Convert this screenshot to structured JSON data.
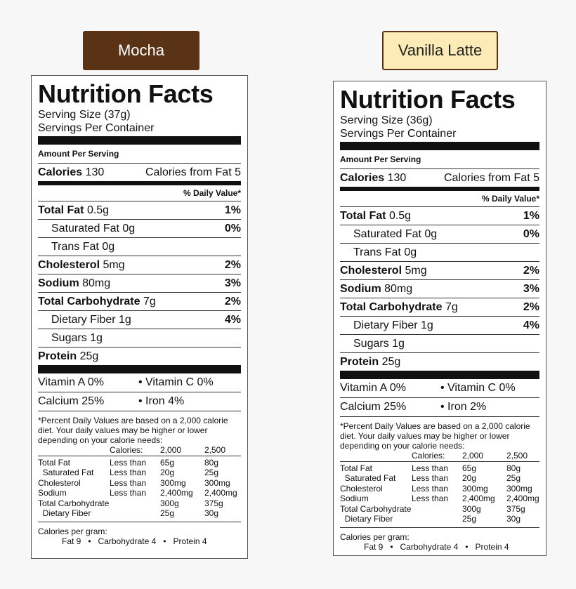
{
  "tabs": [
    {
      "label": "Mocha",
      "bg": "#5a3317",
      "fg": "#ffffff"
    },
    {
      "label": "Vanilla Latte",
      "bg": "#fcebb6",
      "fg": "#222222"
    }
  ],
  "labels": [
    {
      "title": "Nutrition Facts",
      "serving_size": "Serving Size (37g)",
      "servings_per_container": "Servings Per Container",
      "amount_per_serving": "Amount Per Serving",
      "calories_label": "Calories",
      "calories_value": "130",
      "calories_from_fat": "Calories from Fat 5",
      "daily_value_header": "% Daily Value*",
      "nutrients": {
        "total_fat": {
          "label": "Total Fat",
          "amount": "0.5g",
          "dv": "1%"
        },
        "saturated_fat": {
          "label": "Saturated Fat",
          "amount": "0g",
          "dv": "0%"
        },
        "trans_fat": {
          "label": "Trans Fat",
          "amount": "0g"
        },
        "cholesterol": {
          "label": "Cholesterol",
          "amount": "5mg",
          "dv": "2%"
        },
        "sodium": {
          "label": "Sodium",
          "amount": "80mg",
          "dv": "3%"
        },
        "total_carb": {
          "label": "Total Carbohydrate",
          "amount": "7g",
          "dv": "2%"
        },
        "fiber": {
          "label": "Dietary Fiber",
          "amount": "1g",
          "dv": "4%"
        },
        "sugars": {
          "label": "Sugars",
          "amount": "1g"
        },
        "protein": {
          "label": "Protein",
          "amount": "25g"
        }
      },
      "vitamin_a": "Vitamin A 0%",
      "vitamin_c": "• Vitamin C 0%",
      "calcium": "Calcium 25%",
      "iron": "• Iron 4%",
      "footnote": "*Percent Daily Values are based on a 2,000 calorie diet. Your daily values may be higher or lower depending on your calorie needs:",
      "calories_header": "Calories:",
      "cal_2000": "2,000",
      "cal_2500": "2,500",
      "table": [
        [
          "Total Fat",
          "Less than",
          "65g",
          "80g"
        ],
        [
          "  Saturated Fat",
          "Less than",
          "20g",
          "25g"
        ],
        [
          "Cholesterol",
          "Less than",
          "300mg",
          "300mg"
        ],
        [
          "Sodium",
          "Less than",
          "2,400mg",
          "2,400mg"
        ],
        [
          "Total Carbohydrate",
          "",
          "300g",
          "375g"
        ],
        [
          "  Dietary Fiber",
          "",
          "25g",
          "30g"
        ]
      ],
      "calories_per_gram": "Calories per gram:",
      "cpg_values": "Fat 9   •   Carbohydrate 4   •   Protein 4"
    },
    {
      "title": "Nutrition Facts",
      "serving_size": "Serving Size (36g)",
      "servings_per_container": "Servings Per Container",
      "amount_per_serving": "Amount Per Serving",
      "calories_label": "Calories",
      "calories_value": "130",
      "calories_from_fat": "Calories from Fat 5",
      "daily_value_header": "% Daily Value*",
      "nutrients": {
        "total_fat": {
          "label": "Total Fat",
          "amount": "0.5g",
          "dv": "1%"
        },
        "saturated_fat": {
          "label": "Saturated Fat",
          "amount": "0g",
          "dv": "0%"
        },
        "trans_fat": {
          "label": "Trans Fat",
          "amount": "0g"
        },
        "cholesterol": {
          "label": "Cholesterol",
          "amount": "5mg",
          "dv": "2%"
        },
        "sodium": {
          "label": "Sodium",
          "amount": "80mg",
          "dv": "3%"
        },
        "total_carb": {
          "label": "Total Carbohydrate",
          "amount": "7g",
          "dv": "2%"
        },
        "fiber": {
          "label": "Dietary Fiber",
          "amount": "1g",
          "dv": "4%"
        },
        "sugars": {
          "label": "Sugars",
          "amount": "1g"
        },
        "protein": {
          "label": "Protein",
          "amount": "25g"
        }
      },
      "vitamin_a": "Vitamin A 0%",
      "vitamin_c": "• Vitamin C 0%",
      "calcium": "Calcium 25%",
      "iron": "• Iron 2%",
      "footnote": "*Percent Daily Values are based on a 2,000 calorie diet. Your daily values may be higher or lower depending on your calorie needs:",
      "calories_header": "Calories:",
      "cal_2000": "2,000",
      "cal_2500": "2,500",
      "table": [
        [
          "Total Fat",
          "Less than",
          "65g",
          "80g"
        ],
        [
          "  Saturated Fat",
          "Less than",
          "20g",
          "25g"
        ],
        [
          "Cholesterol",
          "Less than",
          "300mg",
          "300mg"
        ],
        [
          "Sodium",
          "Less than",
          "2,400mg",
          "2,400mg"
        ],
        [
          "Total Carbohydrate",
          "",
          "300g",
          "375g"
        ],
        [
          "  Dietary Fiber",
          "",
          "25g",
          "30g"
        ]
      ],
      "calories_per_gram": "Calories per gram:",
      "cpg_values": "Fat 9   •   Carbohydrate 4   •   Protein 4"
    }
  ]
}
